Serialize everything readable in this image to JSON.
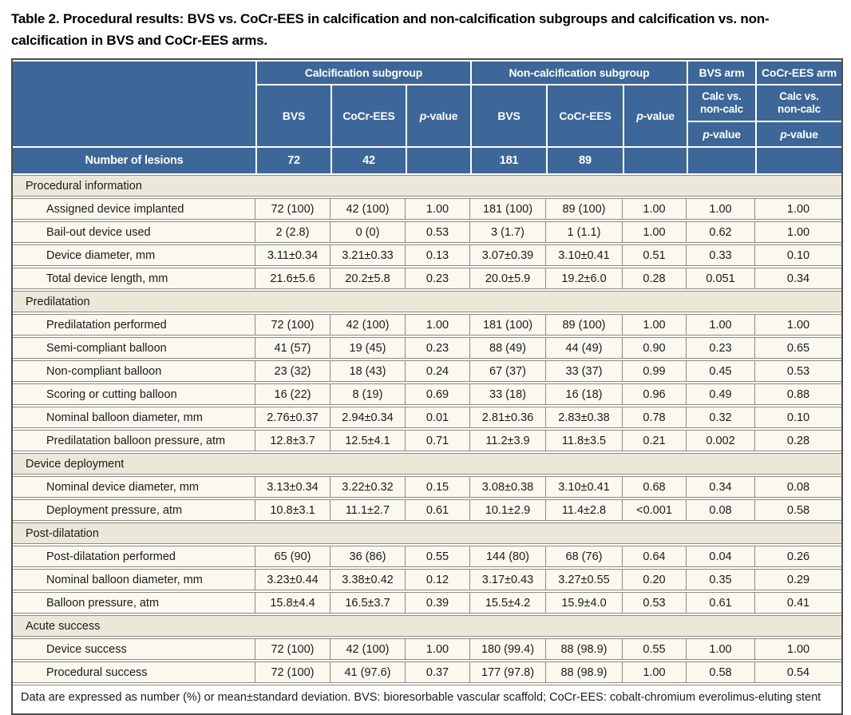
{
  "title": "Table 2. Procedural results: BVS vs. CoCr-EES in calcification and non-calcification subgroups and calcification vs. non-calcification in BVS and CoCr-EES arms.",
  "header": {
    "calc_group": "Calcification subgroup",
    "noncalc_group": "Non-calcification subgroup",
    "bvs_arm": "BVS arm",
    "cocr_arm": "CoCr-EES arm",
    "bvs": "BVS",
    "cocr": "CoCr-EES",
    "p_italic": "p",
    "p_rest": "-value",
    "arm_sub_line1": "Calc vs.",
    "arm_sub_line2": "non-calc"
  },
  "lesions": {
    "label": "Number of lesions",
    "values": [
      "72",
      "42",
      "",
      "181",
      "89",
      "",
      "",
      ""
    ]
  },
  "sections": [
    {
      "title": "Procedural information",
      "rows": [
        {
          "label": "Assigned device implanted",
          "values": [
            "72 (100)",
            "42 (100)",
            "1.00",
            "181 (100)",
            "89 (100)",
            "1.00",
            "1.00",
            "1.00"
          ]
        },
        {
          "label": "Bail-out device used",
          "values": [
            "2 (2.8)",
            "0 (0)",
            "0.53",
            "3 (1.7)",
            "1 (1.1)",
            "1.00",
            "0.62",
            "1.00"
          ]
        },
        {
          "label": "Device diameter, mm",
          "values": [
            "3.11±0.34",
            "3.21±0.33",
            "0.13",
            "3.07±0.39",
            "3.10±0.41",
            "0.51",
            "0.33",
            "0.10"
          ]
        },
        {
          "label": "Total device length, mm",
          "values": [
            "21.6±5.6",
            "20.2±5.8",
            "0.23",
            "20.0±5.9",
            "19.2±6.0",
            "0.28",
            "0.051",
            "0.34"
          ]
        }
      ]
    },
    {
      "title": "Predilatation",
      "rows": [
        {
          "label": "Predilatation performed",
          "values": [
            "72 (100)",
            "42 (100)",
            "1.00",
            "181 (100)",
            "89 (100)",
            "1.00",
            "1.00",
            "1.00"
          ]
        },
        {
          "label": "Semi-compliant balloon",
          "values": [
            "41 (57)",
            "19 (45)",
            "0.23",
            "88 (49)",
            "44 (49)",
            "0.90",
            "0.23",
            "0.65"
          ]
        },
        {
          "label": "Non-compliant balloon",
          "values": [
            "23 (32)",
            "18 (43)",
            "0.24",
            "67 (37)",
            "33 (37)",
            "0.99",
            "0.45",
            "0.53"
          ]
        },
        {
          "label": "Scoring or cutting balloon",
          "values": [
            "16 (22)",
            "8 (19)",
            "0.69",
            "33 (18)",
            "16 (18)",
            "0.96",
            "0.49",
            "0.88"
          ]
        },
        {
          "label": "Nominal balloon diameter, mm",
          "values": [
            "2.76±0.37",
            "2.94±0.34",
            "0.01",
            "2.81±0.36",
            "2.83±0.38",
            "0.78",
            "0.32",
            "0.10"
          ]
        },
        {
          "label": "Predilatation balloon pressure, atm",
          "values": [
            "12.8±3.7",
            "12.5±4.1",
            "0.71",
            "11.2±3.9",
            "11.8±3.5",
            "0.21",
            "0.002",
            "0.28"
          ]
        }
      ]
    },
    {
      "title": "Device deployment",
      "rows": [
        {
          "label": "Nominal device diameter, mm",
          "values": [
            "3.13±0.34",
            "3.22±0.32",
            "0.15",
            "3.08±0.38",
            "3.10±0.41",
            "0.68",
            "0.34",
            "0.08"
          ]
        },
        {
          "label": "Deployment pressure, atm",
          "values": [
            "10.8±3.1",
            "11.1±2.7",
            "0.61",
            "10.1±2.9",
            "11.4±2.8",
            "<0.001",
            "0.08",
            "0.58"
          ]
        }
      ]
    },
    {
      "title": "Post-dilatation",
      "rows": [
        {
          "label": "Post-dilatation performed",
          "values": [
            "65 (90)",
            "36 (86)",
            "0.55",
            "144 (80)",
            "68 (76)",
            "0.64",
            "0.04",
            "0.26"
          ]
        },
        {
          "label": "Nominal balloon diameter, mm",
          "values": [
            "3.23±0.44",
            "3.38±0.42",
            "0.12",
            "3.17±0.43",
            "3.27±0.55",
            "0.20",
            "0.35",
            "0.29"
          ]
        },
        {
          "label": "Balloon pressure, atm",
          "values": [
            "15.8±4.4",
            "16.5±3.7",
            "0.39",
            "15.5±4.2",
            "15.9±4.0",
            "0.53",
            "0.61",
            "0.41"
          ]
        }
      ]
    },
    {
      "title": "Acute success",
      "rows": [
        {
          "label": "Device success",
          "values": [
            "72 (100)",
            "42 (100)",
            "1.00",
            "180 (99.4)",
            "88 (98.9)",
            "0.55",
            "1.00",
            "1.00"
          ]
        },
        {
          "label": "Procedural success",
          "values": [
            "72 (100)",
            "41 (97.6)",
            "0.37",
            "177 (97.8)",
            "88 (98.9)",
            "1.00",
            "0.58",
            "0.54"
          ]
        }
      ]
    }
  ],
  "footnote": "Data are expressed as number (%) or mean±standard deviation. BVS: bioresorbable vascular scaffold; CoCr-EES: cobalt-chromium everolimus-eluting stent",
  "colors": {
    "header_blue": "#3d6699",
    "section_beige": "#ece8d9",
    "row_cream": "#faf8ef",
    "border_gray": "#8c8b80",
    "outer_border": "#4e4d47"
  }
}
